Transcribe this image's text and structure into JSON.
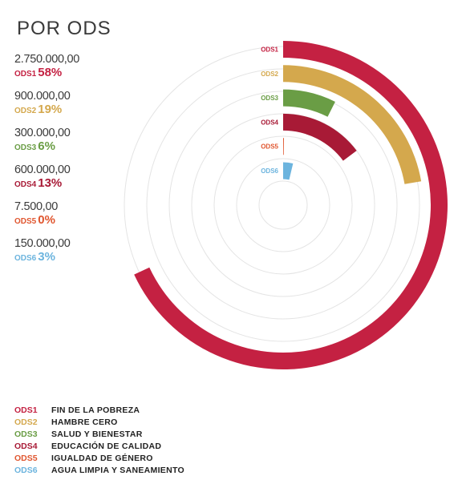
{
  "title": "POR ODS",
  "stats": [
    {
      "code": "ODS1",
      "amount": "2.750.000,00",
      "percent": "58%",
      "color": "#c42142"
    },
    {
      "code": "ODS2",
      "amount": "900.000,00",
      "percent": "19%",
      "color": "#d4a84d"
    },
    {
      "code": "ODS3",
      "amount": "300.000,00",
      "percent": "6%",
      "color": "#6a9d45"
    },
    {
      "code": "ODS4",
      "amount": "600.000,00",
      "percent": "13%",
      "color": "#a81a36"
    },
    {
      "code": "ODS5",
      "amount": "7.500,00",
      "percent": "0%",
      "color": "#e0562f"
    },
    {
      "code": "ODS6",
      "amount": "150.000,00",
      "percent": "3%",
      "color": "#6cb4de"
    }
  ],
  "legend": [
    {
      "code": "ODS1",
      "name": "FIN DE LA POBREZA"
    },
    {
      "code": "ODS2",
      "name": "HAMBRE CERO"
    },
    {
      "code": "ODS3",
      "name": "SALUD Y BIENESTAR"
    },
    {
      "code": "ODS4",
      "name": "EDUCACIÓN DE CALIDAD"
    },
    {
      "code": "ODS5",
      "name": "IGUALDAD DE GÉNERO"
    },
    {
      "code": "ODS6",
      "name": "AGUA LIMPIA Y SANEAMIENTO"
    }
  ],
  "chart_data": {
    "type": "radial-bar",
    "categories": [
      "ODS1",
      "ODS2",
      "ODS3",
      "ODS4",
      "ODS5",
      "ODS6"
    ],
    "values": [
      2750000,
      900000,
      300000,
      600000,
      7500,
      150000
    ],
    "percentages": [
      58,
      19,
      6,
      13,
      0,
      3
    ],
    "colors": [
      "#c42142",
      "#d4a84d",
      "#6a9d45",
      "#a81a36",
      "#e0562f",
      "#6cb4de"
    ],
    "grid": true,
    "legend": "bottom-left"
  }
}
